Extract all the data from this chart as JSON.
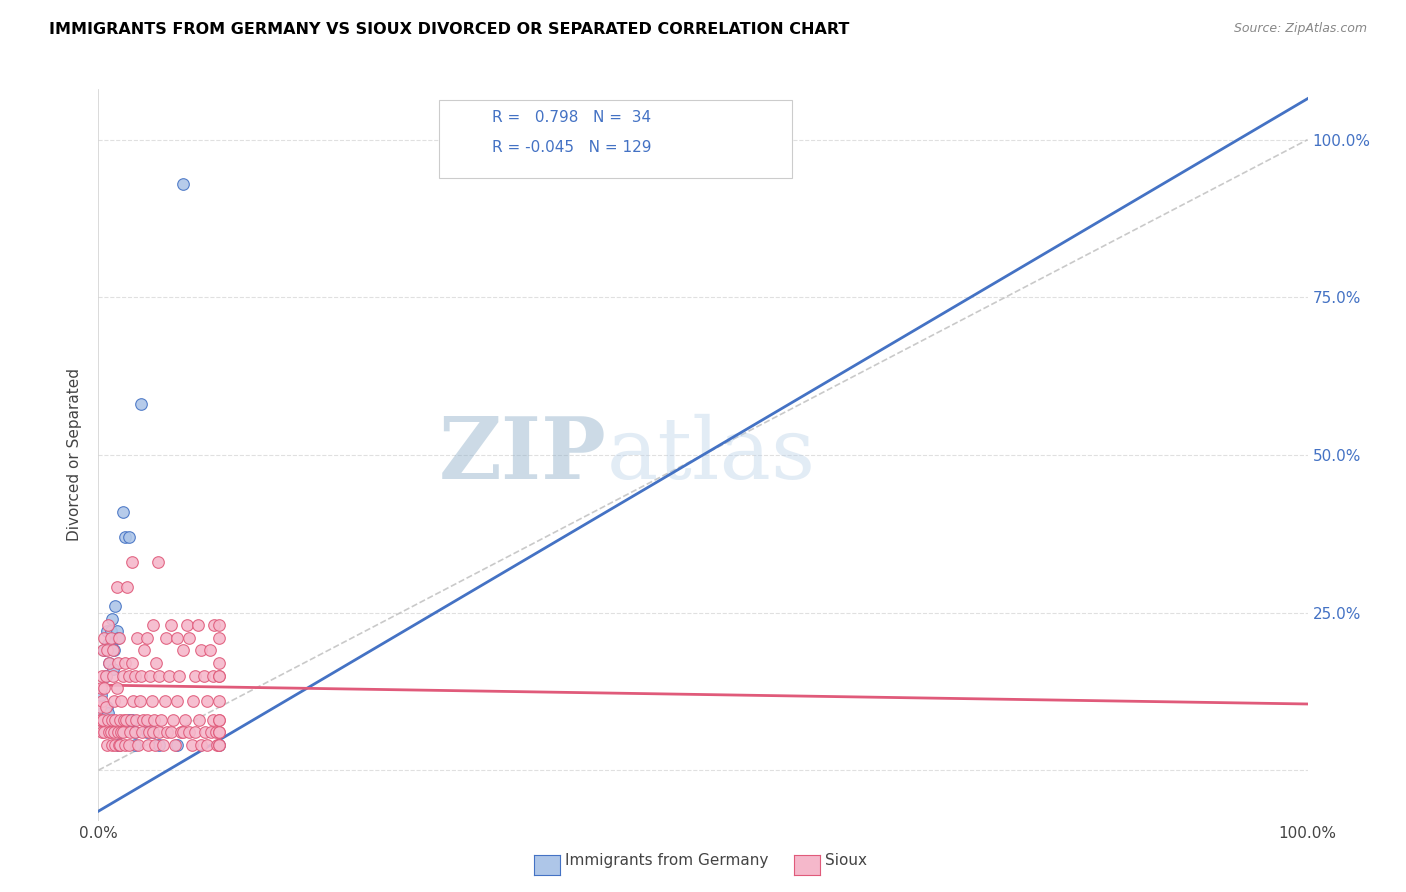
{
  "title": "IMMIGRANTS FROM GERMANY VS SIOUX DIVORCED OR SEPARATED CORRELATION CHART",
  "source": "Source: ZipAtlas.com",
  "ylabel": "Divorced or Separated",
  "legend_label1": "Immigrants from Germany",
  "legend_label2": "Sioux",
  "R1": 0.798,
  "N1": 34,
  "R2": -0.045,
  "N2": 129,
  "color_blue": "#aec6e8",
  "color_pink": "#f5b8cb",
  "line_blue": "#4472c4",
  "line_pink": "#e05a7a",
  "line_gray": "#b8b8b8",
  "watermark_zip": "ZIP",
  "watermark_atlas": "atlas",
  "blue_dots": [
    [
      0.002,
      0.12
    ],
    [
      0.003,
      0.09
    ],
    [
      0.005,
      0.19
    ],
    [
      0.006,
      0.15
    ],
    [
      0.007,
      0.22
    ],
    [
      0.007,
      0.1
    ],
    [
      0.008,
      0.09
    ],
    [
      0.008,
      0.2
    ],
    [
      0.009,
      0.17
    ],
    [
      0.01,
      0.2
    ],
    [
      0.01,
      0.22
    ],
    [
      0.011,
      0.24
    ],
    [
      0.012,
      0.16
    ],
    [
      0.013,
      0.19
    ],
    [
      0.014,
      0.26
    ],
    [
      0.015,
      0.22
    ],
    [
      0.016,
      0.21
    ],
    [
      0.016,
      0.04
    ],
    [
      0.017,
      0.04
    ],
    [
      0.018,
      0.06
    ],
    [
      0.02,
      0.41
    ],
    [
      0.022,
      0.37
    ],
    [
      0.025,
      0.08
    ],
    [
      0.025,
      0.37
    ],
    [
      0.028,
      0.08
    ],
    [
      0.03,
      0.04
    ],
    [
      0.03,
      0.06
    ],
    [
      0.035,
      0.58
    ],
    [
      0.04,
      0.06
    ],
    [
      0.045,
      0.06
    ],
    [
      0.05,
      0.04
    ],
    [
      0.065,
      0.04
    ],
    [
      0.07,
      0.93
    ],
    [
      0.1,
      0.04
    ]
  ],
  "pink_dots": [
    [
      0.001,
      0.1
    ],
    [
      0.001,
      0.08
    ],
    [
      0.002,
      0.13
    ],
    [
      0.002,
      0.08
    ],
    [
      0.003,
      0.15
    ],
    [
      0.003,
      0.06
    ],
    [
      0.003,
      0.11
    ],
    [
      0.004,
      0.19
    ],
    [
      0.004,
      0.08
    ],
    [
      0.005,
      0.21
    ],
    [
      0.005,
      0.13
    ],
    [
      0.005,
      0.06
    ],
    [
      0.006,
      0.15
    ],
    [
      0.006,
      0.1
    ],
    [
      0.007,
      0.19
    ],
    [
      0.007,
      0.04
    ],
    [
      0.008,
      0.23
    ],
    [
      0.008,
      0.08
    ],
    [
      0.009,
      0.06
    ],
    [
      0.009,
      0.17
    ],
    [
      0.01,
      0.21
    ],
    [
      0.01,
      0.06
    ],
    [
      0.011,
      0.04
    ],
    [
      0.011,
      0.08
    ],
    [
      0.012,
      0.19
    ],
    [
      0.012,
      0.15
    ],
    [
      0.013,
      0.11
    ],
    [
      0.013,
      0.06
    ],
    [
      0.014,
      0.08
    ],
    [
      0.014,
      0.04
    ],
    [
      0.015,
      0.13
    ],
    [
      0.015,
      0.29
    ],
    [
      0.016,
      0.17
    ],
    [
      0.016,
      0.06
    ],
    [
      0.017,
      0.21
    ],
    [
      0.017,
      0.04
    ],
    [
      0.018,
      0.08
    ],
    [
      0.018,
      0.04
    ],
    [
      0.019,
      0.06
    ],
    [
      0.019,
      0.11
    ],
    [
      0.02,
      0.15
    ],
    [
      0.02,
      0.06
    ],
    [
      0.021,
      0.08
    ],
    [
      0.022,
      0.17
    ],
    [
      0.022,
      0.04
    ],
    [
      0.023,
      0.08
    ],
    [
      0.024,
      0.29
    ],
    [
      0.025,
      0.15
    ],
    [
      0.025,
      0.04
    ],
    [
      0.026,
      0.06
    ],
    [
      0.027,
      0.08
    ],
    [
      0.028,
      0.33
    ],
    [
      0.028,
      0.17
    ],
    [
      0.029,
      0.11
    ],
    [
      0.03,
      0.15
    ],
    [
      0.03,
      0.06
    ],
    [
      0.031,
      0.08
    ],
    [
      0.032,
      0.21
    ],
    [
      0.033,
      0.04
    ],
    [
      0.034,
      0.11
    ],
    [
      0.035,
      0.15
    ],
    [
      0.036,
      0.06
    ],
    [
      0.037,
      0.08
    ],
    [
      0.038,
      0.19
    ],
    [
      0.04,
      0.21
    ],
    [
      0.04,
      0.08
    ],
    [
      0.041,
      0.04
    ],
    [
      0.042,
      0.06
    ],
    [
      0.043,
      0.15
    ],
    [
      0.044,
      0.11
    ],
    [
      0.045,
      0.23
    ],
    [
      0.045,
      0.06
    ],
    [
      0.046,
      0.08
    ],
    [
      0.047,
      0.04
    ],
    [
      0.048,
      0.17
    ],
    [
      0.049,
      0.33
    ],
    [
      0.05,
      0.15
    ],
    [
      0.05,
      0.06
    ],
    [
      0.052,
      0.08
    ],
    [
      0.053,
      0.04
    ],
    [
      0.055,
      0.11
    ],
    [
      0.056,
      0.21
    ],
    [
      0.057,
      0.06
    ],
    [
      0.058,
      0.15
    ],
    [
      0.06,
      0.23
    ],
    [
      0.06,
      0.06
    ],
    [
      0.062,
      0.08
    ],
    [
      0.063,
      0.04
    ],
    [
      0.065,
      0.21
    ],
    [
      0.065,
      0.11
    ],
    [
      0.067,
      0.15
    ],
    [
      0.068,
      0.06
    ],
    [
      0.07,
      0.19
    ],
    [
      0.07,
      0.06
    ],
    [
      0.072,
      0.08
    ],
    [
      0.073,
      0.23
    ],
    [
      0.075,
      0.21
    ],
    [
      0.075,
      0.06
    ],
    [
      0.077,
      0.04
    ],
    [
      0.078,
      0.11
    ],
    [
      0.08,
      0.15
    ],
    [
      0.08,
      0.06
    ],
    [
      0.082,
      0.23
    ],
    [
      0.083,
      0.08
    ],
    [
      0.085,
      0.19
    ],
    [
      0.085,
      0.04
    ],
    [
      0.087,
      0.15
    ],
    [
      0.088,
      0.06
    ],
    [
      0.09,
      0.11
    ],
    [
      0.09,
      0.04
    ],
    [
      0.092,
      0.19
    ],
    [
      0.093,
      0.06
    ],
    [
      0.095,
      0.15
    ],
    [
      0.095,
      0.08
    ],
    [
      0.096,
      0.23
    ],
    [
      0.097,
      0.06
    ],
    [
      0.098,
      0.04
    ],
    [
      0.1,
      0.15
    ],
    [
      0.1,
      0.23
    ],
    [
      0.1,
      0.04
    ],
    [
      0.1,
      0.11
    ],
    [
      0.1,
      0.06
    ],
    [
      0.1,
      0.08
    ],
    [
      0.1,
      0.15
    ],
    [
      0.1,
      0.04
    ],
    [
      0.1,
      0.21
    ],
    [
      0.1,
      0.06
    ],
    [
      0.1,
      0.17
    ],
    [
      0.1,
      0.08
    ]
  ],
  "blue_trendline_x": [
    0.0,
    1.0
  ],
  "blue_trendline_y": [
    -0.065,
    1.065
  ],
  "pink_trendline_x": [
    0.0,
    1.0
  ],
  "pink_trendline_y": [
    0.135,
    0.105
  ],
  "diagonal_line_x": [
    0.0,
    1.0
  ],
  "diagonal_line_y": [
    0.0,
    1.0
  ],
  "xlim": [
    0.0,
    1.0
  ],
  "ylim": [
    -0.08,
    1.08
  ],
  "xticks": [
    0.0,
    0.2,
    0.4,
    0.6,
    0.8,
    1.0
  ],
  "xticklabels": [
    "0.0%",
    "",
    "",
    "",
    "",
    "100.0%"
  ],
  "yticks": [
    0.0,
    0.25,
    0.5,
    0.75,
    1.0
  ],
  "yticklabels_right": [
    "",
    "25.0%",
    "50.0%",
    "75.0%",
    "100.0%"
  ],
  "grid_color": "#e0e0e0",
  "dot_size": 70
}
